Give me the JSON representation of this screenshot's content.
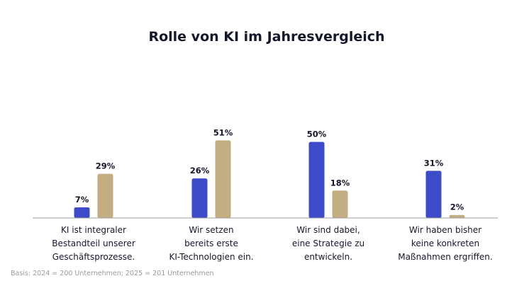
{
  "chart_data": {
    "type": "bar",
    "title": "Rolle von KI im Jahresvergleich",
    "categories": [
      [
        "KI ist integraler",
        "Bestandteil unserer",
        "Geschäftsprozesse."
      ],
      [
        "Wir setzen",
        "bereits erste",
        "KI-Technologien ein."
      ],
      [
        "Wir sind dabei,",
        "eine Strategie zu",
        "entwickeln."
      ],
      [
        "Wir haben bisher",
        "keine konkreten",
        "Maßnahmen ergriffen."
      ]
    ],
    "series": [
      {
        "name": "2024",
        "color": "#3d4bc8",
        "values": [
          7,
          26,
          50,
          31
        ],
        "labels": [
          "7%",
          "26%",
          "50%",
          "31%"
        ]
      },
      {
        "name": "2025",
        "color": "#c3ae84",
        "values": [
          29,
          51,
          18,
          2
        ],
        "labels": [
          "29%",
          "51%",
          "18%",
          "2%"
        ]
      }
    ],
    "unit": "%",
    "ylim": [
      0,
      100
    ],
    "grid": false,
    "footnote": "Basis: 2024 = 200 Unternehmen; 2025 = 201 Unternehmen"
  }
}
